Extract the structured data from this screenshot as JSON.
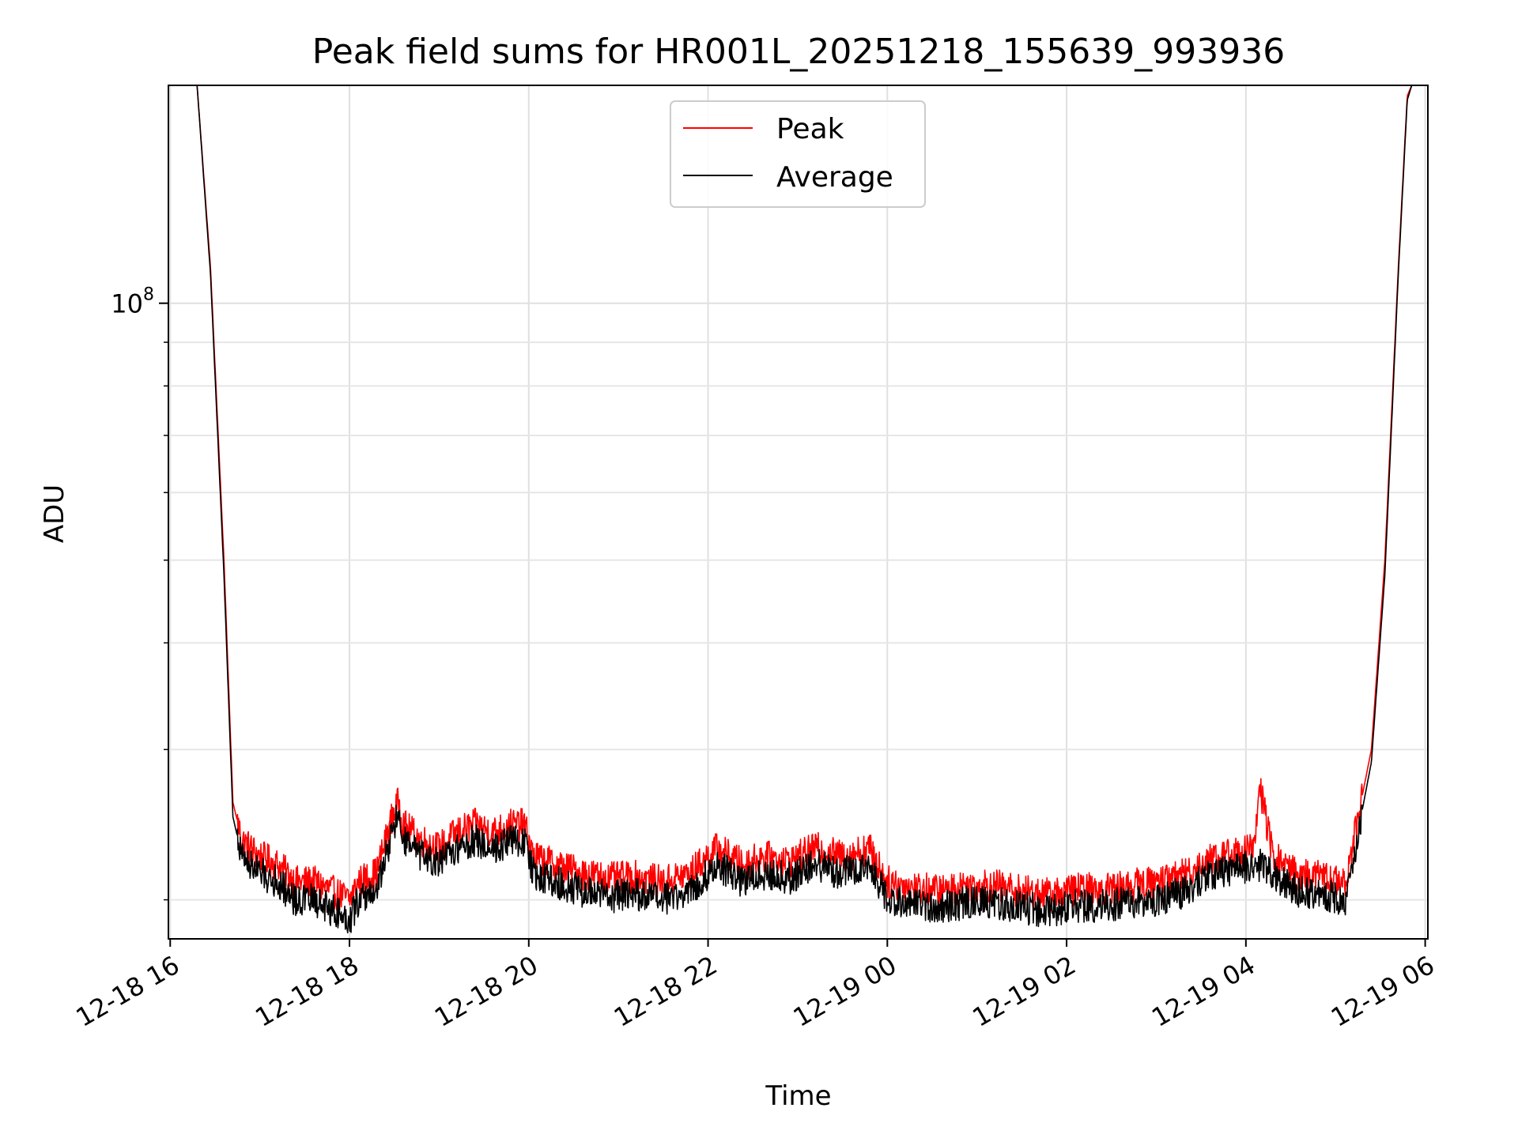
{
  "chart_data": {
    "type": "line",
    "title": "Peak field sums for HR001L_20251218_155639_993936",
    "xlabel": "Time",
    "ylabel": "ADU",
    "yscale": "log",
    "ylim": [
      18000000,
      180000000
    ],
    "xlim_hours": [
      -0.02,
      14.03
    ],
    "grid": true,
    "legend_position": "top-center",
    "x_ticks": [
      {
        "hours": 0,
        "label": "12-18 16"
      },
      {
        "hours": 2,
        "label": "12-18 18"
      },
      {
        "hours": 4,
        "label": "12-18 20"
      },
      {
        "hours": 6,
        "label": "12-18 22"
      },
      {
        "hours": 8,
        "label": "12-19 00"
      },
      {
        "hours": 10,
        "label": "12-19 02"
      },
      {
        "hours": 12,
        "label": "12-19 04"
      },
      {
        "hours": 14,
        "label": "12-19 06"
      }
    ],
    "y_major_ticks": [
      {
        "value": 100000000,
        "base": "10",
        "exponent": "8"
      }
    ],
    "y_minor_ticks": [
      20000000,
      30000000,
      40000000,
      50000000,
      60000000,
      70000000,
      80000000,
      90000000
    ],
    "series": [
      {
        "name": "Peak",
        "color": "#ff0000",
        "x_hours": [
          0.0,
          0.3,
          0.45,
          0.6,
          0.7,
          0.8,
          1.0,
          1.2,
          1.4,
          1.6,
          1.8,
          2.0,
          2.1,
          2.3,
          2.5,
          2.55,
          2.6,
          2.8,
          3.0,
          3.2,
          3.4,
          3.6,
          3.8,
          3.95,
          4.05,
          4.3,
          4.6,
          4.9,
          5.2,
          5.5,
          5.8,
          6.1,
          6.4,
          6.6,
          6.9,
          7.2,
          7.5,
          7.8,
          8.0,
          8.3,
          8.6,
          8.9,
          9.2,
          9.5,
          9.8,
          10.1,
          10.4,
          10.7,
          11.0,
          11.3,
          11.6,
          11.9,
          12.1,
          12.15,
          12.3,
          12.6,
          12.9,
          13.1,
          13.2,
          13.4,
          13.55,
          13.7,
          13.8,
          13.85,
          14.0
        ],
        "values": [
          180000000,
          180000000,
          110000000,
          50000000,
          26000000,
          23500000,
          22500000,
          22000000,
          21000000,
          21000000,
          20500000,
          20000000,
          21000000,
          21500000,
          25500000,
          26000000,
          24500000,
          23500000,
          23000000,
          24000000,
          24500000,
          24000000,
          24500000,
          24500000,
          22500000,
          22000000,
          21500000,
          21200000,
          21300000,
          21000000,
          21500000,
          23000000,
          22000000,
          22500000,
          22200000,
          23000000,
          22500000,
          23000000,
          21000000,
          20700000,
          20500000,
          20800000,
          20800000,
          20500000,
          20300000,
          20600000,
          20600000,
          20800000,
          21000000,
          21400000,
          22400000,
          22700000,
          23000000,
          27500000,
          22500000,
          21400000,
          21300000,
          20800000,
          23500000,
          30000000,
          50000000,
          110000000,
          175000000,
          180000000,
          180000000
        ]
      },
      {
        "name": "Average",
        "color": "#000000",
        "x_hours": [
          0.0,
          0.3,
          0.45,
          0.6,
          0.7,
          0.8,
          1.0,
          1.2,
          1.4,
          1.6,
          1.8,
          2.0,
          2.1,
          2.3,
          2.5,
          2.55,
          2.6,
          2.8,
          3.0,
          3.2,
          3.4,
          3.6,
          3.8,
          3.95,
          4.05,
          4.3,
          4.6,
          4.9,
          5.2,
          5.5,
          5.8,
          6.1,
          6.4,
          6.6,
          6.9,
          7.2,
          7.5,
          7.8,
          8.0,
          8.3,
          8.6,
          8.9,
          9.2,
          9.5,
          9.8,
          10.1,
          10.4,
          10.7,
          11.0,
          11.3,
          11.6,
          11.9,
          12.1,
          12.15,
          12.3,
          12.6,
          12.9,
          13.1,
          13.2,
          13.4,
          13.55,
          13.7,
          13.8,
          13.85,
          14.0
        ],
        "values": [
          180000000,
          180000000,
          108000000,
          48000000,
          25000000,
          22500000,
          21500000,
          21000000,
          20000000,
          20000000,
          19500000,
          19000000,
          20000000,
          20500000,
          24500000,
          25000000,
          23500000,
          22500000,
          22000000,
          23000000,
          23500000,
          23000000,
          23500000,
          23500000,
          21500000,
          21000000,
          20500000,
          20200000,
          20300000,
          20000000,
          20500000,
          22000000,
          21000000,
          21500000,
          21200000,
          22000000,
          21500000,
          22000000,
          20000000,
          19800000,
          19600000,
          19900000,
          19900000,
          19600000,
          19400000,
          19700000,
          19700000,
          19900000,
          20000000,
          20400000,
          21400000,
          21700000,
          22000000,
          22000000,
          21500000,
          20400000,
          20300000,
          19800000,
          22500000,
          29000000,
          48000000,
          108000000,
          173000000,
          180000000,
          180000000
        ]
      }
    ]
  }
}
